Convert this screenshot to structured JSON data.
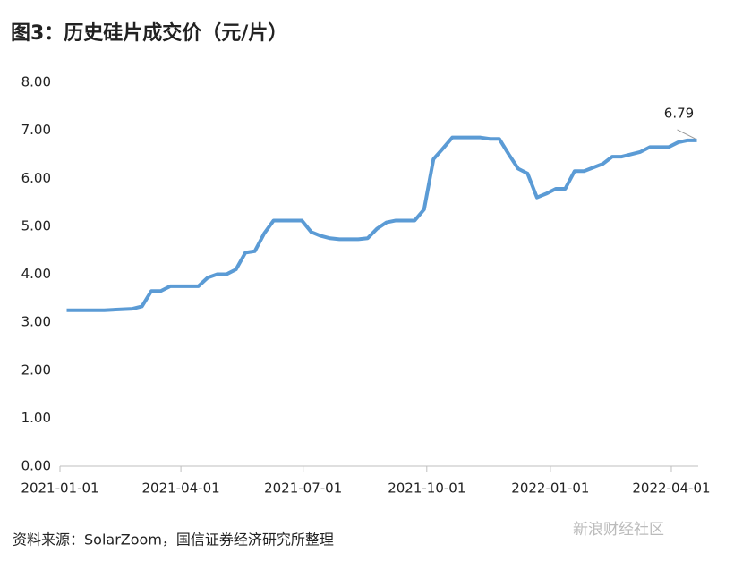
{
  "chart_data": {
    "type": "line",
    "title": "图3：历史硅片成交价（元/片）",
    "source": "资料来源：SolarZoom，国信证券经济研究所整理",
    "watermark": "新浪财经社区",
    "x": [
      "2021-01-06",
      "2021-02-03",
      "2021-02-24",
      "2021-03-03",
      "2021-03-10",
      "2021-03-17",
      "2021-03-24",
      "2021-04-07",
      "2021-04-14",
      "2021-04-21",
      "2021-04-28",
      "2021-05-05",
      "2021-05-12",
      "2021-05-19",
      "2021-05-26",
      "2021-06-02",
      "2021-06-09",
      "2021-06-16",
      "2021-06-30",
      "2021-07-07",
      "2021-07-14",
      "2021-07-21",
      "2021-07-28",
      "2021-08-11",
      "2021-08-18",
      "2021-08-25",
      "2021-09-01",
      "2021-09-08",
      "2021-09-22",
      "2021-09-29",
      "2021-10-06",
      "2021-10-13",
      "2021-10-20",
      "2021-11-10",
      "2021-11-17",
      "2021-11-24",
      "2021-12-01",
      "2021-12-08",
      "2021-12-15",
      "2021-12-22",
      "2021-12-29",
      "2022-01-05",
      "2022-01-12",
      "2022-01-19",
      "2022-01-26",
      "2022-02-09",
      "2022-02-16",
      "2022-02-23",
      "2022-03-02",
      "2022-03-09",
      "2022-03-16",
      "2022-03-30",
      "2022-04-06",
      "2022-04-13",
      "2022-04-20"
    ],
    "series": [
      {
        "name": "硅片成交价",
        "color": "#5b9bd5",
        "values": [
          3.25,
          3.25,
          3.28,
          3.33,
          3.65,
          3.65,
          3.75,
          3.75,
          3.75,
          3.93,
          4.0,
          4.0,
          4.1,
          4.45,
          4.48,
          4.85,
          5.12,
          5.12,
          5.12,
          4.88,
          4.8,
          4.75,
          4.73,
          4.73,
          4.75,
          4.95,
          5.08,
          5.12,
          5.12,
          5.35,
          6.4,
          6.62,
          6.85,
          6.85,
          6.82,
          6.82,
          6.5,
          6.2,
          6.1,
          5.6,
          5.68,
          5.78,
          5.78,
          6.15,
          6.15,
          6.3,
          6.45,
          6.45,
          6.5,
          6.55,
          6.65,
          6.65,
          6.75,
          6.79,
          6.79
        ]
      }
    ],
    "xlim": [
      "2021-01-01",
      "2022-04-21"
    ],
    "xticks": [
      "2021-01-01",
      "2021-04-01",
      "2021-07-01",
      "2021-10-01",
      "2022-01-01",
      "2022-04-01"
    ],
    "ylim": [
      0,
      8
    ],
    "yticks": [
      {
        "value": 0,
        "label": "0.00"
      },
      {
        "value": 1,
        "label": "1.00"
      },
      {
        "value": 2,
        "label": "2.00"
      },
      {
        "value": 3,
        "label": "3.00"
      },
      {
        "value": 4,
        "label": "4.00"
      },
      {
        "value": 5,
        "label": "5.00"
      },
      {
        "value": 6,
        "label": "6.00"
      },
      {
        "value": 7,
        "label": "7.00"
      },
      {
        "value": 8,
        "label": "8.00"
      }
    ],
    "grid": false
  }
}
